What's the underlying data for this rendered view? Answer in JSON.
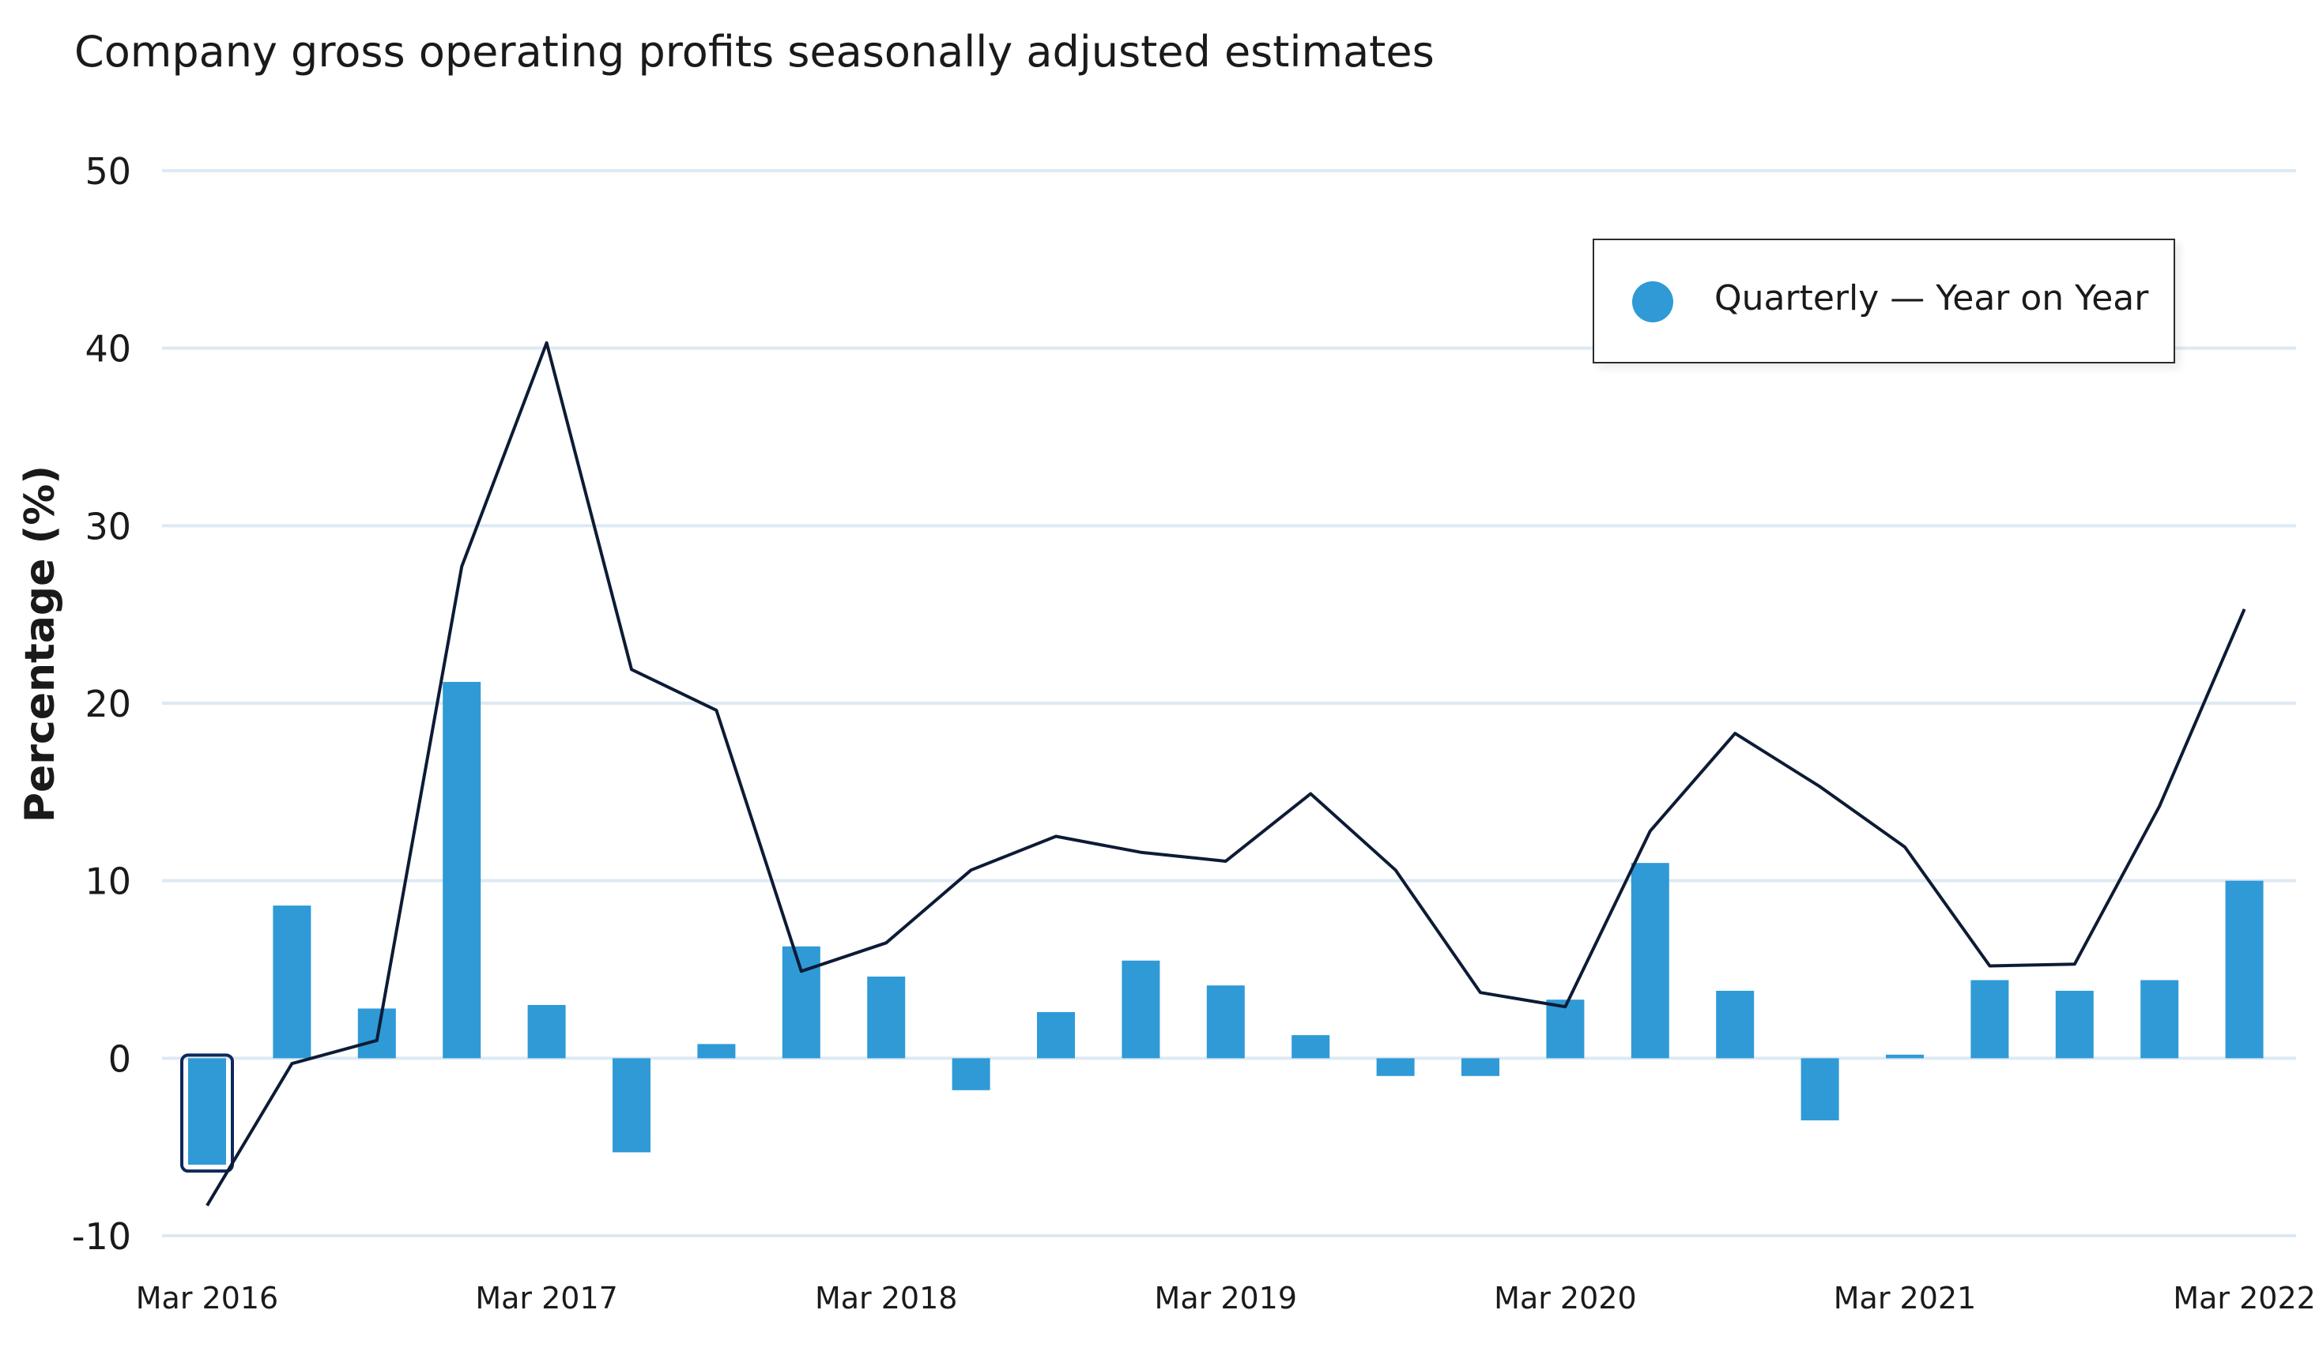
{
  "chart_data": {
    "type": "bar",
    "title": "Company gross operating profits seasonally adjusted estimates",
    "xlabel": "",
    "ylabel": "Percentage (%)",
    "ylim": [
      -10,
      50
    ],
    "y_ticks": [
      "-10",
      "0",
      "10",
      "20",
      "30",
      "40",
      "50"
    ],
    "x_tick_labels": [
      "Mar 2016",
      "Mar 2017",
      "Mar 2018",
      "Mar 2019",
      "Mar 2020",
      "Mar 2021",
      "Mar 2022"
    ],
    "categories": [
      "Mar 2016",
      "Jun 2016",
      "Sep 2016",
      "Dec 2016",
      "Mar 2017",
      "Jun 2017",
      "Sep 2017",
      "Dec 2017",
      "Mar 2018",
      "Jun 2018",
      "Sep 2018",
      "Dec 2018",
      "Mar 2019",
      "Jun 2019",
      "Sep 2019",
      "Dec 2019",
      "Mar 2020",
      "Jun 2020",
      "Sep 2020",
      "Dec 2020",
      "Mar 2021",
      "Jun 2021",
      "Sep 2021",
      "Dec 2021",
      "Mar 2022"
    ],
    "grid": true,
    "legend_position": "top-right",
    "series": [
      {
        "name": "Quarterly — Year on Year",
        "type": "bar",
        "color": "#2f9ad6",
        "values": [
          -6.0,
          8.6,
          2.8,
          21.2,
          3.0,
          -5.3,
          0.8,
          6.3,
          4.6,
          -1.8,
          2.6,
          5.5,
          4.1,
          1.3,
          -1.0,
          -1.0,
          3.3,
          11.0,
          3.8,
          -3.5,
          0.2,
          4.4,
          3.8,
          4.4,
          10.0
        ]
      },
      {
        "type": "line",
        "color": "#0d1b35",
        "values": [
          -8.3,
          -0.3,
          1.0,
          27.7,
          40.3,
          21.9,
          19.6,
          4.9,
          6.5,
          10.6,
          12.5,
          11.6,
          11.1,
          14.9,
          10.6,
          3.7,
          2.9,
          12.8,
          18.3,
          15.3,
          11.9,
          5.2,
          5.3,
          14.2,
          25.3
        ]
      }
    ],
    "highlighted_category": "Mar 2016"
  },
  "legend": {
    "label": "Quarterly — Year on Year",
    "marker_color": "#2f9ad6"
  }
}
